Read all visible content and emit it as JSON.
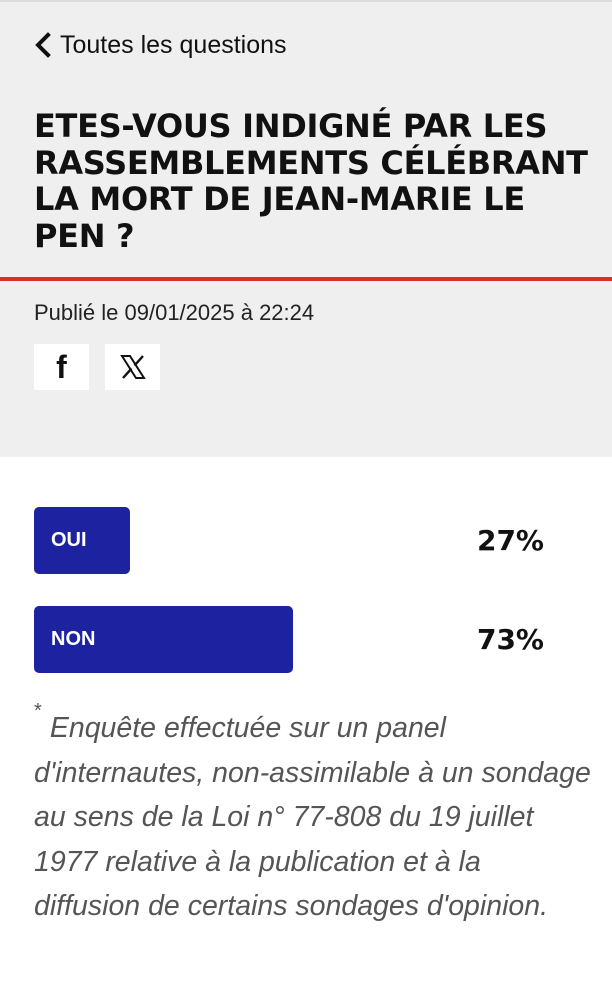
{
  "nav": {
    "back_label": "Toutes les questions"
  },
  "question": {
    "title": "ETES-VOUS INDIGNÉ PAR LES RASSEMBLEMENTS CÉLÉBRANT LA MORT DE JEAN-MARIE LE PEN ?",
    "published": "Publié le 09/01/2025 à 22:24"
  },
  "share": [
    {
      "icon": "facebook-icon",
      "glyph": "f"
    },
    {
      "icon": "x-icon"
    }
  ],
  "results": [
    {
      "label": "OUI",
      "percent_label": "27%",
      "percent": 27
    },
    {
      "label": "NON",
      "percent_label": "73%",
      "percent": 73
    }
  ],
  "footnote": {
    "asterisk": "*",
    "text": "Enquête effectuée sur un panel d'internautes, non-assimilable à un sondage au sens de la Loi n° 77-808 du 19 juillet 1977 relative à la publication et à la diffusion de certains sondages d'opinion."
  },
  "colors": {
    "accent": "#1d23a0",
    "rule": "#d6302b",
    "header_bg": "#efefef"
  }
}
